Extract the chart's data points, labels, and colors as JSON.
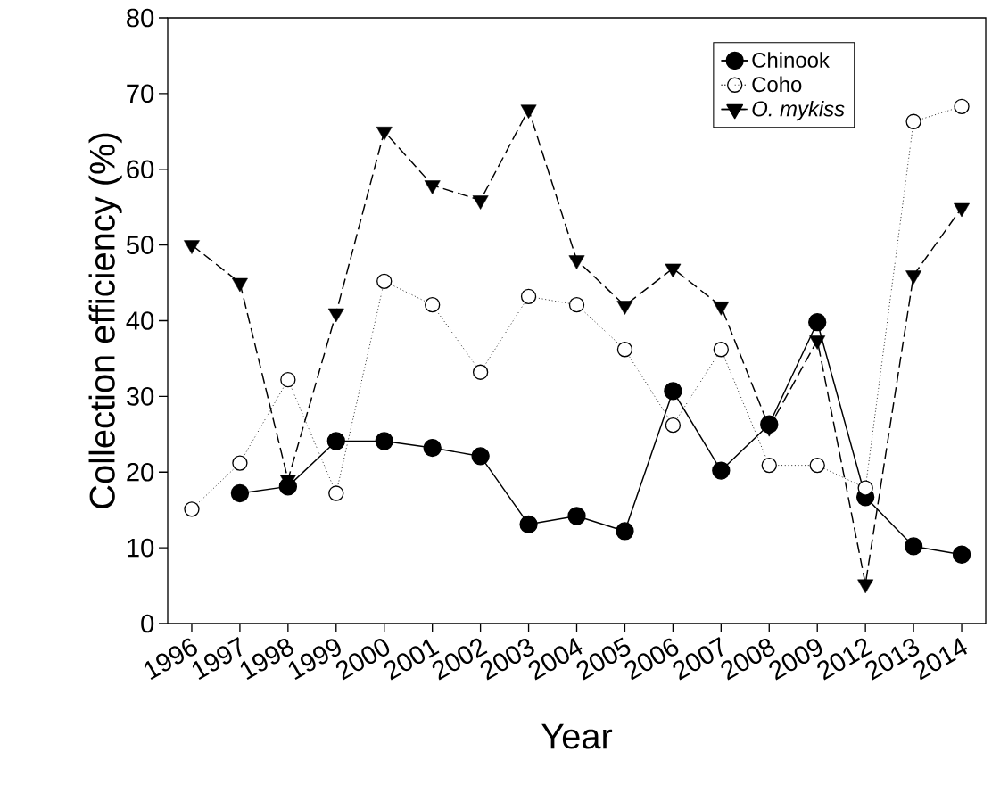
{
  "chart_data": {
    "type": "line",
    "xlabel": "Year",
    "ylabel": "Collection efficiency (%)",
    "categories": [
      "1996",
      "1997",
      "1998",
      "1999",
      "2000",
      "2001",
      "2002",
      "2003",
      "2004",
      "2005",
      "2006",
      "2007",
      "2008",
      "2009",
      "2012",
      "2013",
      "2014"
    ],
    "series": [
      {
        "name": "Chinook",
        "color": "#000000",
        "marker": "circle",
        "line_style": "solid",
        "values": [
          null,
          17.2,
          18.1,
          24.1,
          24.1,
          23.2,
          22.1,
          13.1,
          14.2,
          12.2,
          30.7,
          20.2,
          26.3,
          39.8,
          16.7,
          10.2,
          9.1
        ]
      },
      {
        "name": "Coho",
        "color": "#000000",
        "marker": "circle",
        "line_style": "dotted",
        "values": [
          15.1,
          21.2,
          32.2,
          17.2,
          45.2,
          42.1,
          33.2,
          43.2,
          42.1,
          36.2,
          26.2,
          36.2,
          20.9,
          20.9,
          17.9,
          66.3,
          68.3
        ]
      },
      {
        "name": "*O. mykiss*",
        "color": "#000000",
        "marker": "triangle",
        "line_style": "dashed",
        "values": [
          50,
          45,
          19,
          41,
          65,
          57.9,
          55.9,
          67.9,
          48,
          42,
          46.9,
          41.9,
          25.9,
          37.4,
          5.2,
          46,
          54.9
        ]
      }
    ],
    "ylim": [
      0,
      80
    ],
    "yticks": [
      0,
      10,
      20,
      30,
      40,
      50,
      60,
      70,
      80
    ],
    "grid": false,
    "legend": "top right"
  }
}
